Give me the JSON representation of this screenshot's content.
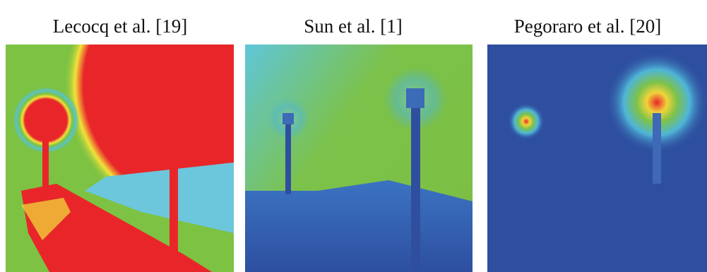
{
  "captions": [
    "Lecocq et al. [19]",
    "Sun et al. [1]",
    "Pegoraro et al. [20]"
  ]
}
